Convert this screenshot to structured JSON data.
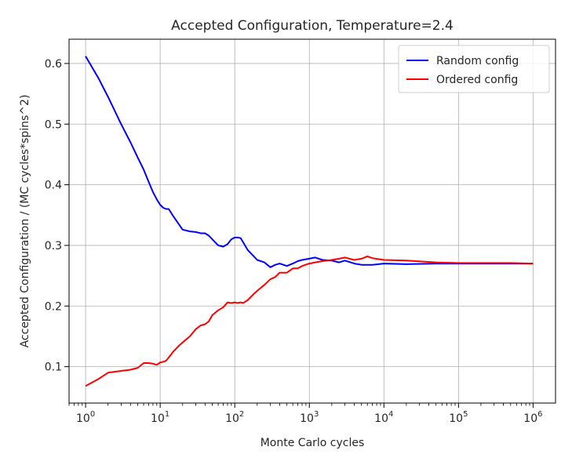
{
  "chart_data": {
    "type": "line",
    "title": "Accepted Configuration, Temperature=2.4",
    "xlabel": "Monte Carlo cycles",
    "ylabel": "Accepted Configuration / (MC cycles*spins^2)",
    "xscale": "log",
    "xlim": [
      0.6,
      2000000
    ],
    "ylim": [
      0.04,
      0.64
    ],
    "xticks": [
      {
        "value": 1,
        "base": "10",
        "exp": "0"
      },
      {
        "value": 10,
        "base": "10",
        "exp": "1"
      },
      {
        "value": 100,
        "base": "10",
        "exp": "2"
      },
      {
        "value": 1000,
        "base": "10",
        "exp": "3"
      },
      {
        "value": 10000,
        "base": "10",
        "exp": "4"
      },
      {
        "value": 100000,
        "base": "10",
        "exp": "5"
      },
      {
        "value": 1000000,
        "base": "10",
        "exp": "6"
      }
    ],
    "yticks": [
      {
        "value": 0.1,
        "label": "0.1"
      },
      {
        "value": 0.2,
        "label": "0.2"
      },
      {
        "value": 0.3,
        "label": "0.3"
      },
      {
        "value": 0.4,
        "label": "0.4"
      },
      {
        "value": 0.5,
        "label": "0.5"
      },
      {
        "value": 0.6,
        "label": "0.6"
      }
    ],
    "grid": true,
    "legend_position": "top-right",
    "series": [
      {
        "name": "Random config",
        "color": "#0000ff",
        "x": [
          1,
          1.5,
          2,
          3,
          4,
          5,
          6,
          7,
          8,
          9,
          10,
          11,
          12,
          13,
          15,
          20,
          25,
          30,
          35,
          40,
          45,
          50,
          60,
          70,
          80,
          90,
          100,
          110,
          120,
          130,
          150,
          180,
          200,
          250,
          300,
          350,
          400,
          500,
          600,
          700,
          800,
          1000,
          1200,
          1500,
          2000,
          2500,
          3000,
          4000,
          5000,
          7000,
          10000,
          20000,
          50000,
          100000,
          200000,
          500000,
          1000000
        ],
        "y": [
          0.612,
          0.575,
          0.545,
          0.5,
          0.47,
          0.445,
          0.425,
          0.405,
          0.388,
          0.376,
          0.367,
          0.362,
          0.36,
          0.36,
          0.348,
          0.326,
          0.323,
          0.322,
          0.32,
          0.32,
          0.316,
          0.31,
          0.3,
          0.298,
          0.302,
          0.31,
          0.313,
          0.313,
          0.312,
          0.305,
          0.292,
          0.282,
          0.276,
          0.272,
          0.264,
          0.268,
          0.27,
          0.266,
          0.27,
          0.274,
          0.276,
          0.278,
          0.28,
          0.276,
          0.275,
          0.272,
          0.275,
          0.27,
          0.268,
          0.268,
          0.27,
          0.269,
          0.27,
          0.27,
          0.27,
          0.27,
          0.27
        ]
      },
      {
        "name": "Ordered config",
        "color": "#ff0000",
        "x": [
          1,
          1.5,
          2,
          3,
          4,
          5,
          6,
          7,
          8,
          9,
          10,
          11,
          12,
          13,
          15,
          18,
          20,
          25,
          30,
          35,
          40,
          45,
          50,
          60,
          70,
          80,
          90,
          100,
          110,
          120,
          130,
          150,
          180,
          200,
          250,
          300,
          350,
          400,
          500,
          600,
          700,
          800,
          1000,
          1200,
          1500,
          2000,
          2500,
          3000,
          4000,
          5000,
          6000,
          7000,
          10000,
          20000,
          50000,
          100000,
          200000,
          500000,
          1000000
        ],
        "y": [
          0.068,
          0.08,
          0.09,
          0.093,
          0.095,
          0.098,
          0.106,
          0.106,
          0.105,
          0.103,
          0.107,
          0.108,
          0.11,
          0.115,
          0.125,
          0.135,
          0.14,
          0.15,
          0.162,
          0.168,
          0.17,
          0.175,
          0.185,
          0.193,
          0.198,
          0.206,
          0.205,
          0.206,
          0.205,
          0.206,
          0.205,
          0.21,
          0.22,
          0.225,
          0.235,
          0.244,
          0.248,
          0.255,
          0.255,
          0.262,
          0.262,
          0.266,
          0.27,
          0.272,
          0.274,
          0.276,
          0.278,
          0.28,
          0.276,
          0.278,
          0.282,
          0.279,
          0.276,
          0.275,
          0.272,
          0.271,
          0.271,
          0.271,
          0.27
        ]
      }
    ]
  }
}
